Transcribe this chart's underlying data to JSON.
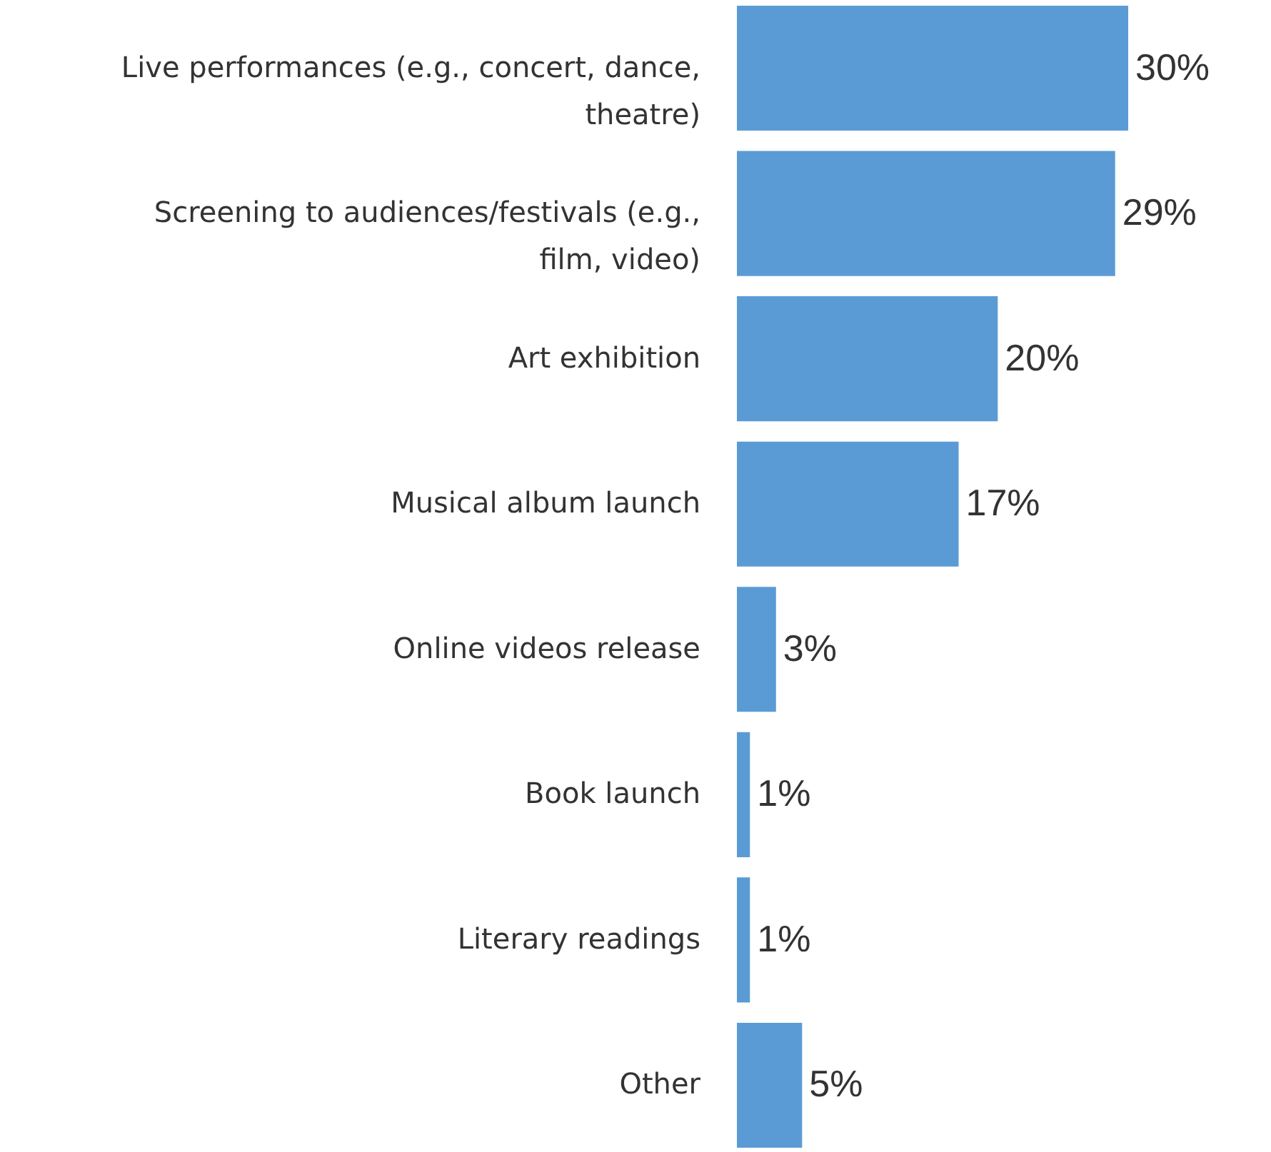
{
  "chart_data": {
    "type": "bar",
    "orientation": "horizontal",
    "categories": [
      "Live performances (e.g., concert, dance, theatre)",
      "Screening to audiences/festivals (e.g., film, video)",
      "Art exhibition",
      "Musical album launch",
      "Online videos release",
      "Book launch",
      "Literary readings",
      "Other"
    ],
    "values": [
      30,
      29,
      20,
      17,
      3,
      1,
      1,
      5
    ],
    "value_labels": [
      "30%",
      "29%",
      "20%",
      "17%",
      "3%",
      "1%",
      "1%",
      "5%"
    ],
    "color": "#5b9bd5",
    "grid": false
  }
}
